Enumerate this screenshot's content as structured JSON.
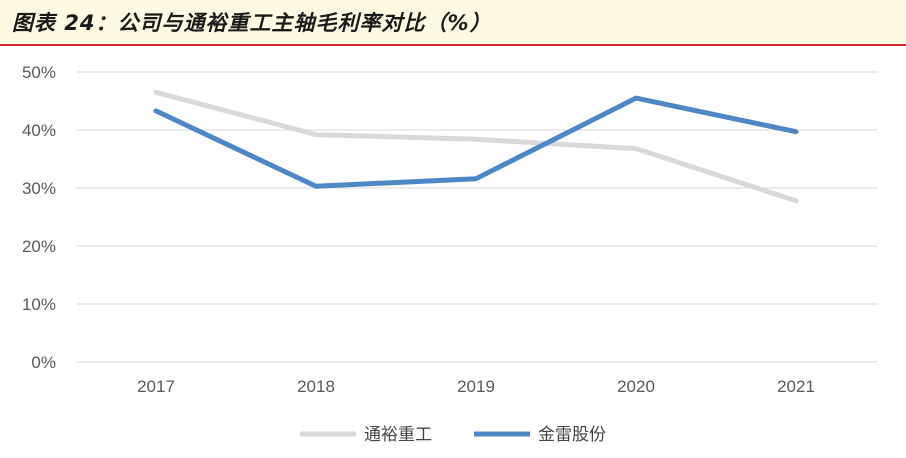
{
  "title": "图表 24：公司与通裕重工主轴毛利率对比（%）",
  "chart_data": {
    "type": "line",
    "categories": [
      "2017",
      "2018",
      "2019",
      "2020",
      "2021"
    ],
    "yticks": [
      "0%",
      "10%",
      "20%",
      "30%",
      "40%",
      "50%"
    ],
    "ylim": [
      0,
      50
    ],
    "grid": true,
    "legend_position": "bottom",
    "series": [
      {
        "name": "通裕重工",
        "color": "#d9d9d9",
        "values": [
          46.5,
          39.2,
          38.4,
          36.8,
          27.8
        ]
      },
      {
        "name": "金雷股份",
        "color": "#4f86c6",
        "values": [
          43.3,
          30.3,
          31.6,
          45.5,
          39.7
        ]
      }
    ]
  }
}
